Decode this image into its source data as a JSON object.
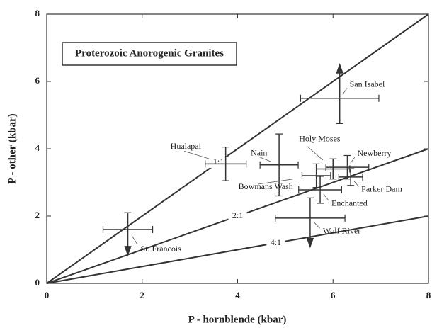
{
  "chart_data": {
    "type": "scatter",
    "title": "Proterozoic Anorogenic Granites",
    "x_label": "P - hornblende (kbar)",
    "y_label": "P - other (kbar)",
    "xlim": [
      0,
      8
    ],
    "ylim": [
      0,
      8
    ],
    "xticks": [
      0,
      2,
      4,
      6,
      8
    ],
    "yticks": [
      0,
      2,
      4,
      6,
      8
    ],
    "color": "#333333",
    "ratio_lines": [
      {
        "label": "1:1",
        "slope": 1
      },
      {
        "label": "2:1",
        "slope": 0.5
      },
      {
        "label": "4:1",
        "slope": 0.25
      }
    ],
    "points": [
      {
        "name": "St. Francois",
        "x": 1.7,
        "y": 1.6,
        "xerr": 0.52,
        "yerr": 0.5,
        "arrow": "down"
      },
      {
        "name": "Hualapai",
        "x": 3.75,
        "y": 3.55,
        "xerr": 0.43,
        "yerr": 0.5
      },
      {
        "name": "Nain",
        "x": 4.87,
        "y": 3.52,
        "xerr": 0.4,
        "yerr": 0.92
      },
      {
        "name": "San Isabel",
        "x": 6.14,
        "y": 5.5,
        "xerr": 0.82,
        "yerr": 0.75,
        "arrow": "up"
      },
      {
        "name": "Holy Moses",
        "x": 6.0,
        "y": 3.4,
        "xerr": 0.35,
        "yerr": 0.3
      },
      {
        "name": "Newberry",
        "x": 6.3,
        "y": 3.45,
        "xerr": 0.45,
        "yerr": 0.35
      },
      {
        "name": "Parker Dam",
        "x": 6.37,
        "y": 3.16,
        "xerr": 0.25,
        "yerr": 0.25
      },
      {
        "name": "Bowmans Wash",
        "x": 5.65,
        "y": 3.2,
        "xerr": 0.3,
        "yerr": 0.35
      },
      {
        "name": "Enchanted",
        "x": 5.73,
        "y": 2.78,
        "xerr": 0.45,
        "yerr": 0.4
      },
      {
        "name": "Wolf River",
        "x": 5.52,
        "y": 1.94,
        "xerr": 0.73,
        "yerr": 0.6,
        "arrow": "down"
      }
    ]
  }
}
